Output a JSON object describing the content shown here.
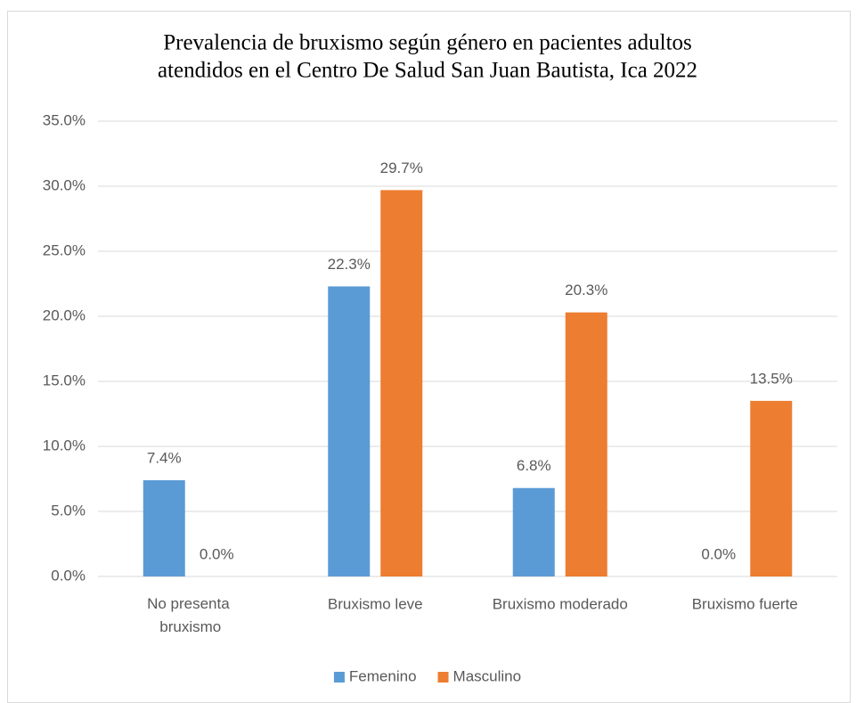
{
  "chart_data": {
    "type": "bar",
    "title": [
      "Prevalencia de bruxismo según género en pacientes adultos",
      "atendidos en el Centro De Salud San Juan Bautista, Ica 2022"
    ],
    "categories": [
      "No presenta bruxismo",
      "Bruxismo leve",
      "Bruxismo moderado",
      "Bruxismo fuerte"
    ],
    "series": [
      {
        "name": "Femenino",
        "color": "#5b9bd5",
        "values": [
          7.4,
          22.3,
          6.8,
          0.0
        ],
        "value_labels": [
          "7.4%",
          "22.3%",
          "6.8%",
          "0.0%"
        ]
      },
      {
        "name": "Masculino",
        "color": "#ed7d31",
        "values": [
          0.0,
          29.7,
          20.3,
          13.5
        ],
        "value_labels": [
          "0.0%",
          "29.7%",
          "20.3%",
          "13.5%"
        ]
      }
    ],
    "ylim": [
      0,
      35
    ],
    "yticks": [
      {
        "value": 0,
        "label": "0.0%"
      },
      {
        "value": 5,
        "label": "5.0%"
      },
      {
        "value": 10,
        "label": "10.0%"
      },
      {
        "value": 15,
        "label": "15.0%"
      },
      {
        "value": 20,
        "label": "20.0%"
      },
      {
        "value": 25,
        "label": "25.0%"
      },
      {
        "value": 30,
        "label": "30.0%"
      },
      {
        "value": 35,
        "label": "35.0%"
      }
    ],
    "grid": true,
    "legend": "bottom"
  }
}
